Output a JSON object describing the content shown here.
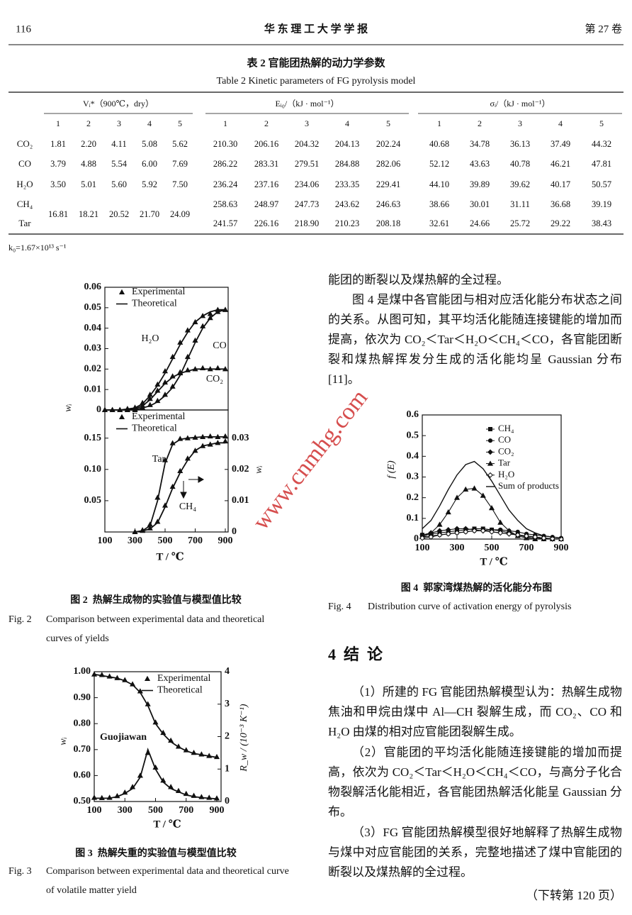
{
  "header": {
    "page_number": "116",
    "journal": "华 东 理 工 大 学 学 报",
    "volume": "第 27 卷"
  },
  "table": {
    "title_zh": "表 2  官能团热解的动力学参数",
    "title_en": "Table 2  Kinetic parameters of FG pyrolysis model",
    "group_headers": [
      "Vᵢ*（900℃，dry）",
      "Eᵢ₀/（kJ · mol⁻¹）",
      "σᵢ/（kJ · mol⁻¹）"
    ],
    "sub_headers": [
      "1",
      "2",
      "3",
      "4",
      "5"
    ],
    "rows": [
      {
        "label": "CO₂",
        "V": [
          "1.81",
          "2.20",
          "4.11",
          "5.08",
          "5.62"
        ],
        "E": [
          "210.30",
          "206.16",
          "204.32",
          "204.13",
          "202.24"
        ],
        "sigma": [
          "40.68",
          "34.78",
          "36.13",
          "37.49",
          "44.32"
        ]
      },
      {
        "label": "CO",
        "V": [
          "3.79",
          "4.88",
          "5.54",
          "6.00",
          "7.69"
        ],
        "E": [
          "286.22",
          "283.31",
          "279.51",
          "284.88",
          "282.06"
        ],
        "sigma": [
          "52.12",
          "43.63",
          "40.78",
          "46.21",
          "47.81"
        ]
      },
      {
        "label": "H₂O",
        "V": [
          "3.50",
          "5.01",
          "5.60",
          "5.92",
          "7.50"
        ],
        "E": [
          "236.24",
          "237.16",
          "234.06",
          "233.35",
          "229.41"
        ],
        "sigma": [
          "44.10",
          "39.89",
          "39.62",
          "40.17",
          "50.57"
        ]
      },
      {
        "label": "CH₄",
        "E": [
          "258.63",
          "248.97",
          "247.73",
          "243.62",
          "246.63"
        ],
        "sigma": [
          "38.66",
          "30.01",
          "31.11",
          "36.68",
          "39.19"
        ]
      },
      {
        "label": "Tar",
        "E": [
          "241.57",
          "226.16",
          "218.90",
          "210.23",
          "208.18"
        ],
        "sigma": [
          "32.61",
          "24.66",
          "25.72",
          "29.22",
          "38.43"
        ]
      }
    ],
    "merged_V": [
      "16.81",
      "18.21",
      "20.52",
      "21.70",
      "24.09"
    ],
    "note": "k₀=1.67×10¹³ s⁻¹"
  },
  "chart_data": [
    {
      "type": "line",
      "xlim": [
        100,
        900
      ],
      "ylim": [
        0,
        0.06
      ],
      "yticks": [
        0,
        0.01,
        0.02,
        0.03,
        0.04,
        0.05,
        0.06
      ],
      "y_label": "wᵢ",
      "legend": [
        "Experimental",
        "Theoretical"
      ],
      "color": "#111111",
      "x": [
        100,
        150,
        200,
        250,
        300,
        350,
        400,
        450,
        500,
        550,
        600,
        650,
        700,
        750,
        800,
        850,
        900
      ],
      "series": [
        {
          "label": "H₂O",
          "theoretical": [
            0,
            0,
            0,
            0.0005,
            0.001,
            0.003,
            0.007,
            0.012,
            0.018,
            0.025,
            0.032,
            0.038,
            0.043,
            0.046,
            0.048,
            0.049,
            0.049
          ],
          "experimental": [
            0,
            0,
            0,
            0.0006,
            0.0012,
            0.0035,
            0.0075,
            0.0125,
            0.019,
            0.026,
            0.033,
            0.039,
            0.043,
            0.046,
            0.047,
            0.049,
            0.049
          ]
        },
        {
          "label": "CO",
          "theoretical": [
            0,
            0,
            0,
            0,
            0,
            0.001,
            0.002,
            0.004,
            0.007,
            0.011,
            0.017,
            0.025,
            0.033,
            0.04,
            0.045,
            0.048,
            0.049
          ],
          "experimental": [
            0,
            0,
            0,
            0,
            0,
            0.0012,
            0.0025,
            0.0045,
            0.0075,
            0.0115,
            0.018,
            0.026,
            0.034,
            0.041,
            0.045,
            0.048,
            0.049
          ]
        },
        {
          "label": "CO₂",
          "theoretical": [
            0,
            0,
            0,
            0,
            0.0005,
            0.002,
            0.005,
            0.009,
            0.013,
            0.016,
            0.018,
            0.019,
            0.02,
            0.02,
            0.02,
            0.02,
            0.02
          ],
          "experimental": [
            0,
            0,
            0,
            0,
            0.0006,
            0.0022,
            0.0055,
            0.0095,
            0.0135,
            0.0165,
            0.0185,
            0.0195,
            0.02,
            0.0205,
            0.02,
            0.0205,
            0.02
          ]
        }
      ]
    },
    {
      "type": "line",
      "xlim": [
        100,
        900
      ],
      "xticks": [
        100,
        300,
        500,
        700,
        900
      ],
      "ylim": [
        0,
        0.195
      ],
      "yticks": [
        0.05,
        {
          "value": 0.1,
          "label": "0.10"
        },
        0.15
      ],
      "y2lim": [
        0,
        0.039
      ],
      "y2ticks": [
        0,
        0.01,
        0.02,
        0.03
      ],
      "y2_label": "wᵢ",
      "x_label": "T / ℃",
      "legend": [
        "Experimental",
        "Theoretical"
      ],
      "color": "#111111",
      "x": [
        300,
        350,
        400,
        450,
        500,
        550,
        600,
        650,
        700,
        750,
        800,
        850,
        900
      ],
      "series": [
        {
          "label": "Tar",
          "theoretical": [
            0,
            0.002,
            0.01,
            0.05,
            0.11,
            0.14,
            0.148,
            0.15,
            0.151,
            0.152,
            0.152,
            0.152,
            0.152
          ],
          "experimental": [
            0,
            0.003,
            0.012,
            0.055,
            0.115,
            0.142,
            0.149,
            0.15,
            0.151,
            0.152,
            0.153,
            0.152,
            0.153
          ]
        },
        {
          "label": "CH₄",
          "axis": "y2",
          "theoretical": [
            0,
            0.0003,
            0.001,
            0.003,
            0.008,
            0.014,
            0.019,
            0.023,
            0.026,
            0.0275,
            0.028,
            0.0285,
            0.0285
          ],
          "experimental": [
            0,
            0.0004,
            0.0012,
            0.0033,
            0.0085,
            0.0145,
            0.0195,
            0.0235,
            0.026,
            0.0275,
            0.028,
            0.0285,
            0.029
          ]
        }
      ]
    },
    {
      "type": "line",
      "xlim": [
        100,
        900
      ],
      "xticks": [
        100,
        300,
        500,
        700,
        900
      ],
      "ylim": [
        0.5,
        1.0
      ],
      "yticks": [
        {
          "value": 0.5,
          "label": "0.50"
        },
        {
          "value": 0.6,
          "label": "0.60"
        },
        {
          "value": 0.7,
          "label": "0.70"
        },
        {
          "value": 0.8,
          "label": "0.80"
        },
        {
          "value": 0.9,
          "label": "0.90"
        },
        {
          "value": 1.0,
          "label": "1.00"
        }
      ],
      "y2lim": [
        0,
        4
      ],
      "y2ticks": [
        0,
        1,
        2,
        3,
        4
      ],
      "y_label": "wᵢ",
      "y2_label": "R_w / (10⁻³ K⁻¹)",
      "x_label": "T / ℃",
      "annotation": "Guojiawan",
      "legend": [
        "Experimental",
        "Theoretical"
      ],
      "color": "#111111",
      "x": [
        100,
        150,
        200,
        250,
        300,
        350,
        400,
        450,
        500,
        550,
        600,
        650,
        700,
        750,
        800,
        850,
        900
      ],
      "series": [
        {
          "theoretical": [
            0.99,
            0.985,
            0.98,
            0.975,
            0.965,
            0.95,
            0.92,
            0.87,
            0.8,
            0.76,
            0.73,
            0.71,
            0.695,
            0.685,
            0.68,
            0.675,
            0.67
          ],
          "experimental": [
            0.99,
            0.988,
            0.982,
            0.976,
            0.968,
            0.952,
            0.925,
            0.875,
            0.805,
            0.765,
            0.735,
            0.712,
            0.698,
            0.688,
            0.682,
            0.676,
            0.672
          ]
        },
        {
          "axis": "y2",
          "theoretical": [
            0.1,
            0.1,
            0.1,
            0.15,
            0.25,
            0.4,
            0.75,
            1.6,
            1,
            0.6,
            0.4,
            0.3,
            0.2,
            0.15,
            0.12,
            0.1,
            0.08
          ],
          "experimental": [
            0.12,
            0.11,
            0.12,
            0.17,
            0.28,
            0.45,
            0.8,
            1.5,
            1.05,
            0.65,
            0.45,
            0.33,
            0.24,
            0.18,
            0.14,
            0.12,
            0.1
          ]
        }
      ]
    },
    {
      "type": "line",
      "xlim": [
        100,
        900
      ],
      "xticks": [
        100,
        300,
        500,
        700,
        900
      ],
      "ylim": [
        0,
        0.6
      ],
      "yticks": [
        0,
        0.1,
        0.2,
        0.3,
        0.4,
        0.5,
        0.6
      ],
      "y_label": "f (E)",
      "x_label": "T / ℃",
      "x": [
        100,
        150,
        200,
        250,
        300,
        350,
        400,
        450,
        500,
        550,
        600,
        650,
        700,
        750,
        800,
        850,
        900
      ],
      "series": [
        {
          "name": "CH₄",
          "color": "#111111",
          "marker": "square",
          "values": [
            0.02,
            0.025,
            0.03,
            0.035,
            0.04,
            0.045,
            0.05,
            0.05,
            0.045,
            0.04,
            0.03,
            0.02,
            0.015,
            0.01,
            0.005,
            0.002,
            0
          ]
        },
        {
          "name": "CO",
          "color": "#111111",
          "marker": "circle",
          "values": [
            0.01,
            0.015,
            0.02,
            0.025,
            0.03,
            0.035,
            0.04,
            0.042,
            0.045,
            0.045,
            0.04,
            0.035,
            0.025,
            0.02,
            0.015,
            0.01,
            0.005
          ]
        },
        {
          "name": "CO₂",
          "color": "#111111",
          "marker": "diamond",
          "values": [
            0.02,
            0.03,
            0.04,
            0.045,
            0.05,
            0.05,
            0.045,
            0.04,
            0.035,
            0.03,
            0.025,
            0.02,
            0.01,
            0.005,
            0.002,
            0,
            0
          ]
        },
        {
          "name": "Tar",
          "color": "#111111",
          "marker": "triangle",
          "values": [
            0.01,
            0.03,
            0.07,
            0.13,
            0.2,
            0.24,
            0.245,
            0.21,
            0.15,
            0.08,
            0.04,
            0.015,
            0.005,
            0,
            0,
            0,
            0
          ]
        },
        {
          "name": "H₂O",
          "color": "#111111",
          "marker": "open-diamond",
          "values": [
            0.005,
            0.01,
            0.02,
            0.025,
            0.03,
            0.035,
            0.04,
            0.04,
            0.035,
            0.03,
            0.025,
            0.02,
            0.015,
            0.01,
            0.005,
            0.002,
            0
          ]
        },
        {
          "name": "Sum of products",
          "color": "#111111",
          "marker": "none",
          "values": [
            0.05,
            0.09,
            0.16,
            0.24,
            0.31,
            0.36,
            0.375,
            0.34,
            0.28,
            0.21,
            0.14,
            0.09,
            0.05,
            0.03,
            0.015,
            0.01,
            0.005
          ]
        }
      ]
    }
  ],
  "figures": [
    {
      "caption_zh": "图 2  热解生成物的实验值与模型值比较",
      "label_en": "Fig. 2",
      "caption_en": "Comparison between experimental data and theoretical curves of yields"
    },
    {
      "caption_zh": "图 3  热解失重的实验值与模型值比较",
      "label_en": "Fig. 3",
      "caption_en": "Comparison between experimental data and theoretical curve of volatile matter yield"
    },
    {
      "caption_zh": "图 4  郭家湾煤热解的活化能分布图",
      "label_en": "Fig. 4",
      "caption_en": "Distribution curve of activation energy of pyrolysis"
    }
  ],
  "body": {
    "paragraphs": [
      "能团的断裂以及煤热解的全过程。",
      "图 4 是煤中各官能团与相对应活化能分布状态之间的关系。从图可知，其平均活化能随连接键能的增加而提高，依次为 CO₂＜Tar＜H₂O＜CH₄＜CO，各官能团断裂和煤热解挥发分生成的活化能均呈 Gaussian 分布[11]。"
    ],
    "section_heading": "4  结  论",
    "conclusions": [
      "（1）所建的 FG 官能团热解模型认为：热解生成物焦油和甲烷由煤中 Al—CH 裂解生成，而 CO₂、CO 和 H₂O 由煤的相对应官能团裂解生成。",
      "（2）官能团的平均活化能随连接键能的增加而提高，依次为 CO₂＜Tar＜H₂O＜CH₄＜CO，与高分子化合物裂解活化能相近，各官能团热解活化能呈 Gaussian 分布。",
      "（3）FG 官能团热解模型很好地解释了热解生成物与煤中对应官能团的关系，完整地描述了煤中官能团的断裂以及煤热解的全过程。"
    ],
    "continued": "（下转第 120 页）"
  },
  "watermark": "www.cnmhg.com"
}
